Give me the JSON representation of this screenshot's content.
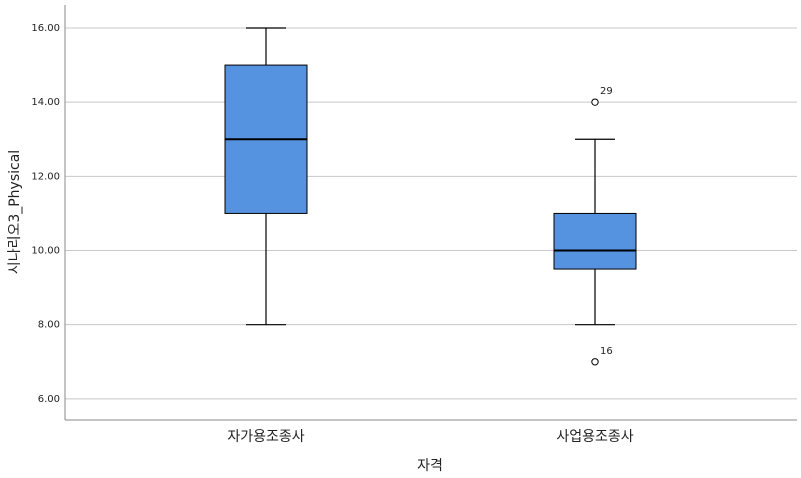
{
  "chart_data": {
    "type": "box",
    "x_label": "자격",
    "y_label": "시나리오3_Physical",
    "categories": [
      "자가용조종사",
      "사업용조종사"
    ],
    "color": "#5592e0",
    "boxes": [
      {
        "min": 8,
        "q1": 11,
        "median": 13,
        "q3": 15,
        "max": 16,
        "outliers": []
      },
      {
        "min": 8,
        "q1": 9.5,
        "median": 10,
        "q3": 11,
        "max": 13,
        "outliers": [
          {
            "value": 14,
            "label": "29"
          },
          {
            "value": 7,
            "label": "16"
          }
        ]
      }
    ],
    "ylim": [
      5.43,
      16.62
    ],
    "yticks": [
      {
        "value": 6,
        "label": "6.00"
      },
      {
        "value": 8,
        "label": "8.00"
      },
      {
        "value": 10,
        "label": "10.00"
      },
      {
        "value": 12,
        "label": "12.00"
      },
      {
        "value": 14,
        "label": "14.00"
      },
      {
        "value": 16,
        "label": "16.00"
      }
    ],
    "grid": true
  }
}
